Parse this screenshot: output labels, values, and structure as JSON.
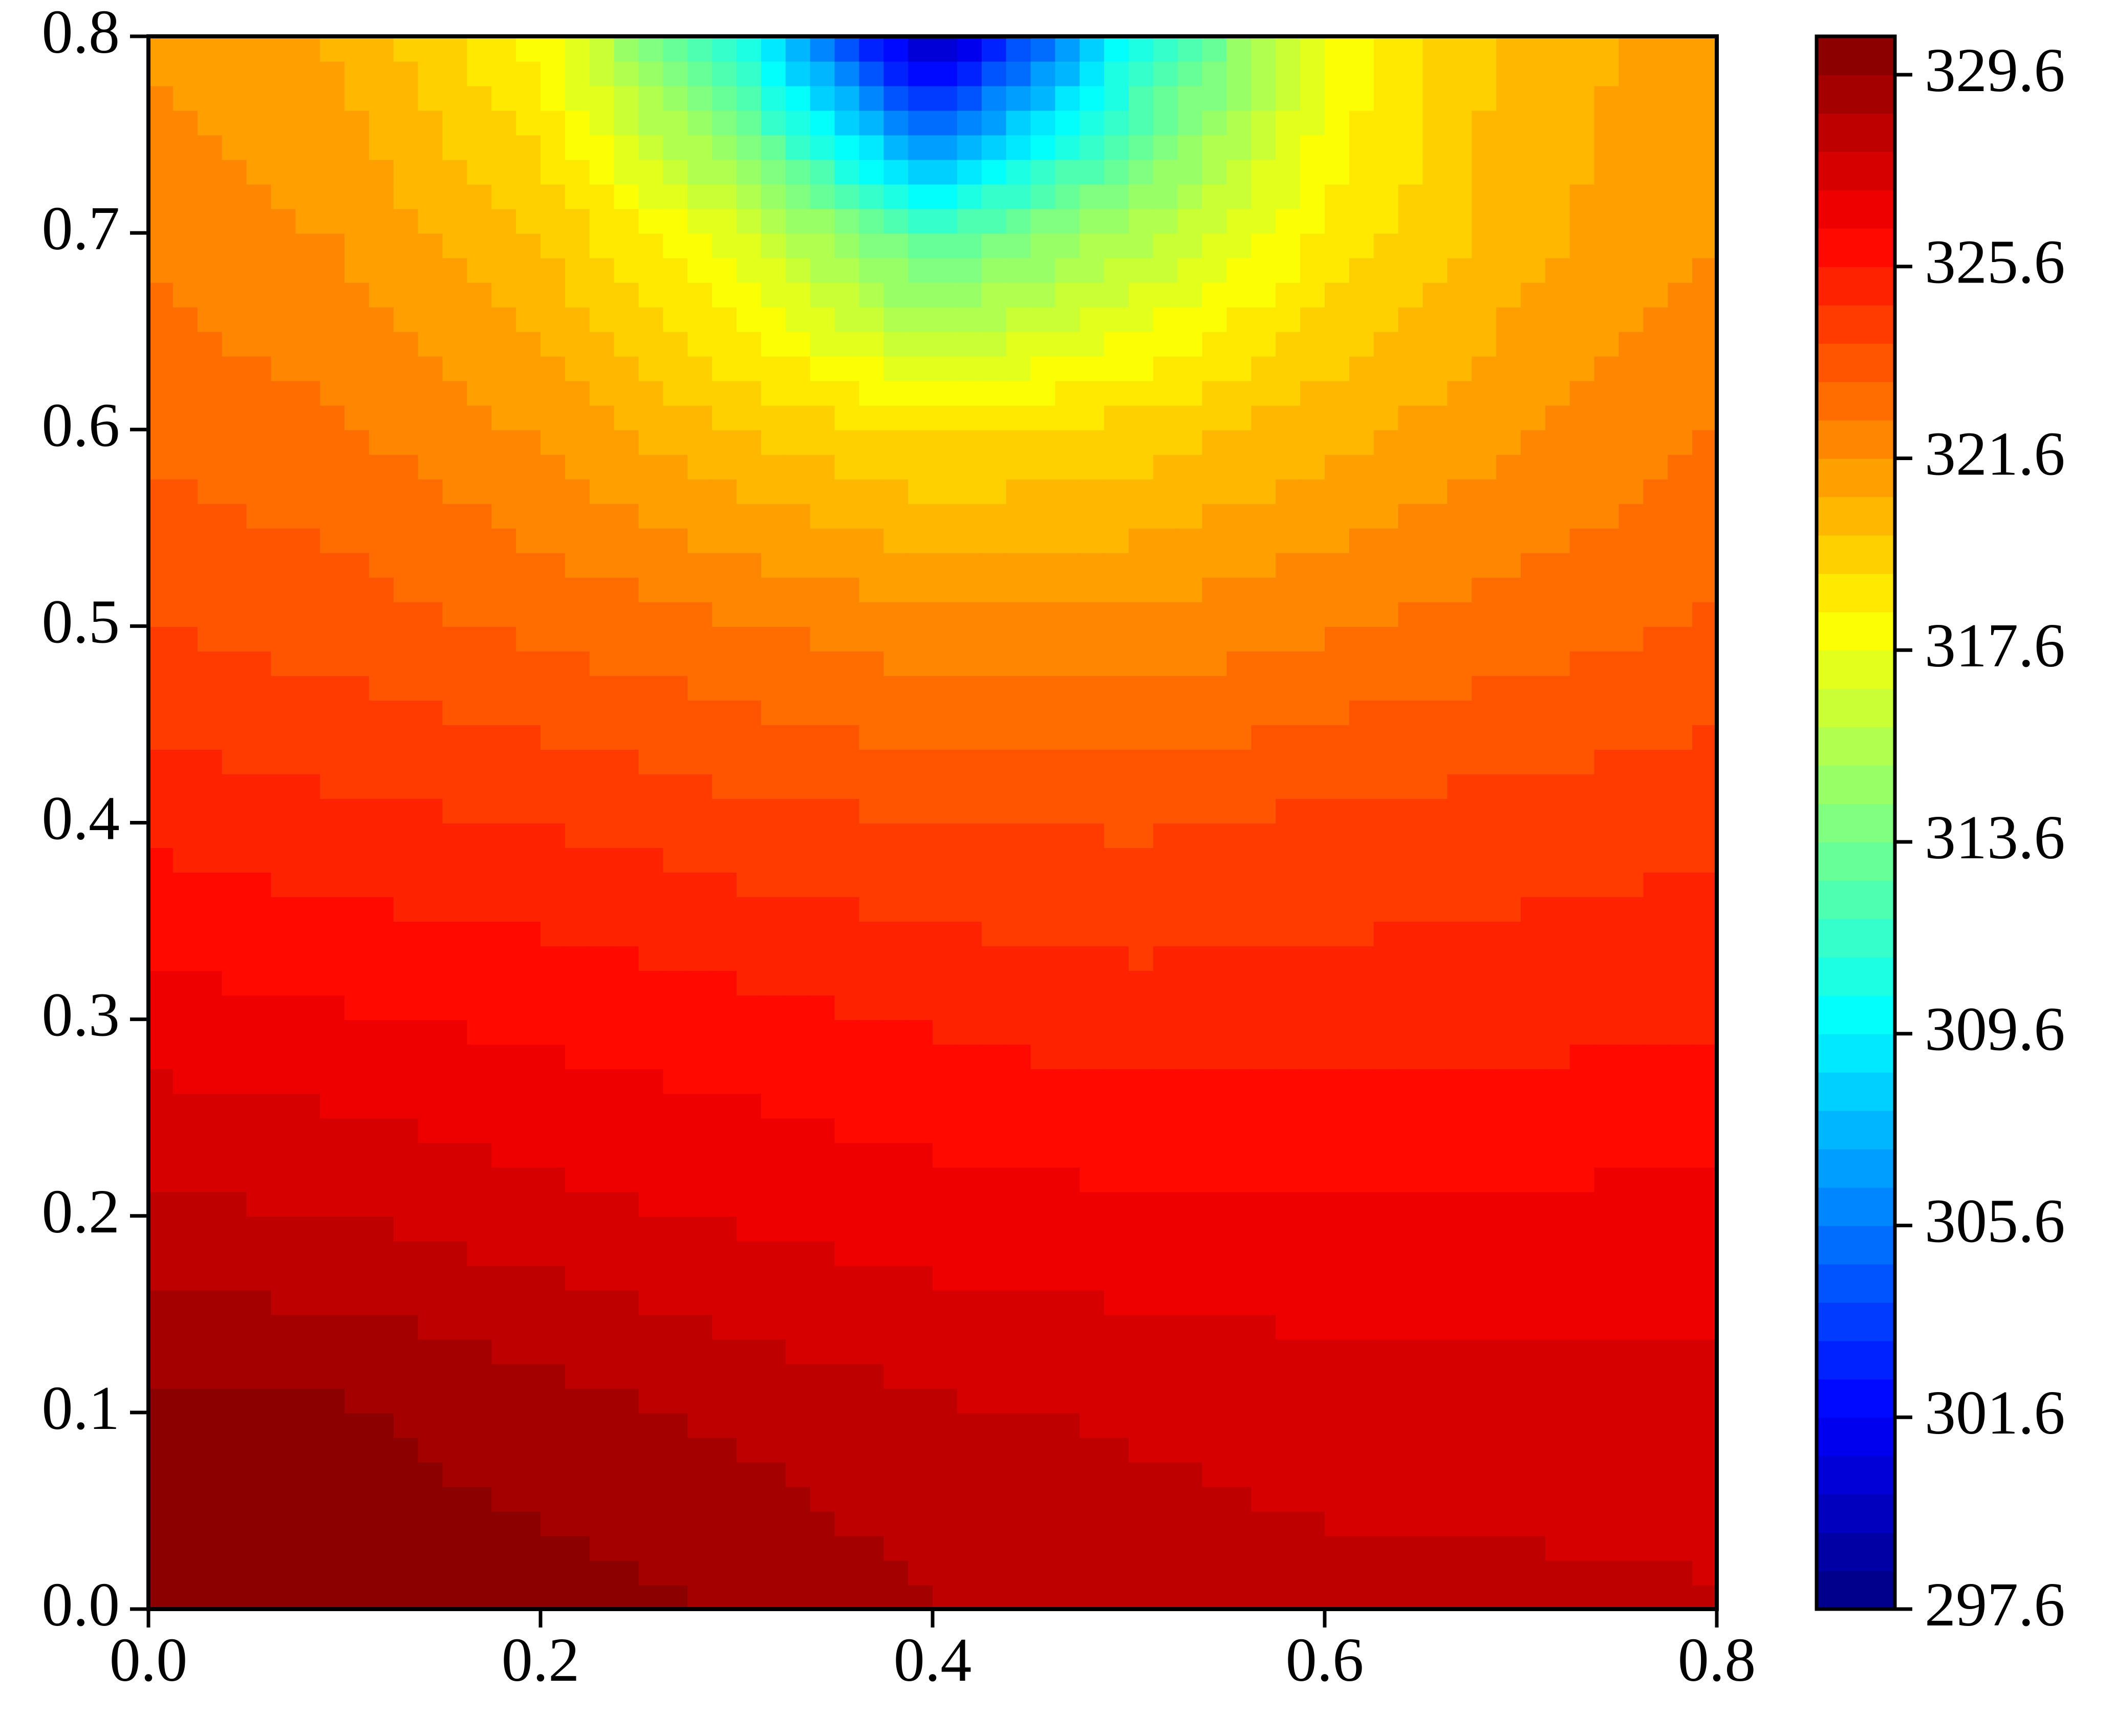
{
  "chart_data": {
    "type": "contour",
    "colormap": "jet",
    "x": [
      0,
      0.1,
      0.2,
      0.3,
      0.4,
      0.5,
      0.6,
      0.7,
      0.8
    ],
    "y": [
      0,
      0.1,
      0.2,
      0.3,
      0.4,
      0.5,
      0.6,
      0.7,
      0.8
    ],
    "z": [
      [
        330.1,
        330.1,
        329.9,
        329.6,
        328.8,
        328.5,
        328.3,
        328.2,
        328.1
      ],
      [
        329.8,
        329.7,
        329.2,
        328.6,
        328.1,
        327.9,
        327.6,
        327.6,
        327.5
      ],
      [
        328.2,
        328.0,
        327.5,
        327.1,
        326.8,
        326.6,
        326.6,
        326.6,
        326.7
      ],
      [
        326.8,
        326.5,
        326.2,
        325.9,
        325.5,
        325.2,
        325.2,
        325.3,
        325.5
      ],
      [
        325.4,
        325.0,
        324.8,
        324.3,
        324.0,
        323.9,
        324.2,
        324.4,
        324.6
      ],
      [
        324.0,
        323.6,
        323.0,
        322.5,
        321.8,
        321.8,
        322.3,
        322.8,
        323.3
      ],
      [
        323.0,
        322.5,
        321.5,
        320.0,
        319.0,
        319.5,
        320.5,
        321.5,
        322.4
      ],
      [
        322.2,
        321.5,
        320.0,
        317.0,
        312.5,
        315.5,
        318.5,
        320.5,
        321.6
      ],
      [
        321.5,
        320.6,
        318.0,
        311.0,
        298.5,
        310.0,
        317.5,
        320.5,
        321.0
      ]
    ],
    "xlim": [
      0,
      0.8
    ],
    "ylim": [
      0,
      0.8
    ],
    "xticks": [
      {
        "value": 0,
        "label": "0.0"
      },
      0.2,
      0.4,
      0.6,
      0.8
    ],
    "yticks": [
      {
        "value": 0,
        "label": "0.0"
      },
      0.1,
      0.2,
      0.3,
      0.4,
      0.5,
      0.6,
      0.7,
      0.8
    ],
    "clim": [
      297.6,
      330.4
    ],
    "n_levels": 41,
    "cticks": [
      297.6,
      301.6,
      305.6,
      309.6,
      313.6,
      317.6,
      321.6,
      325.6,
      329.6
    ]
  }
}
